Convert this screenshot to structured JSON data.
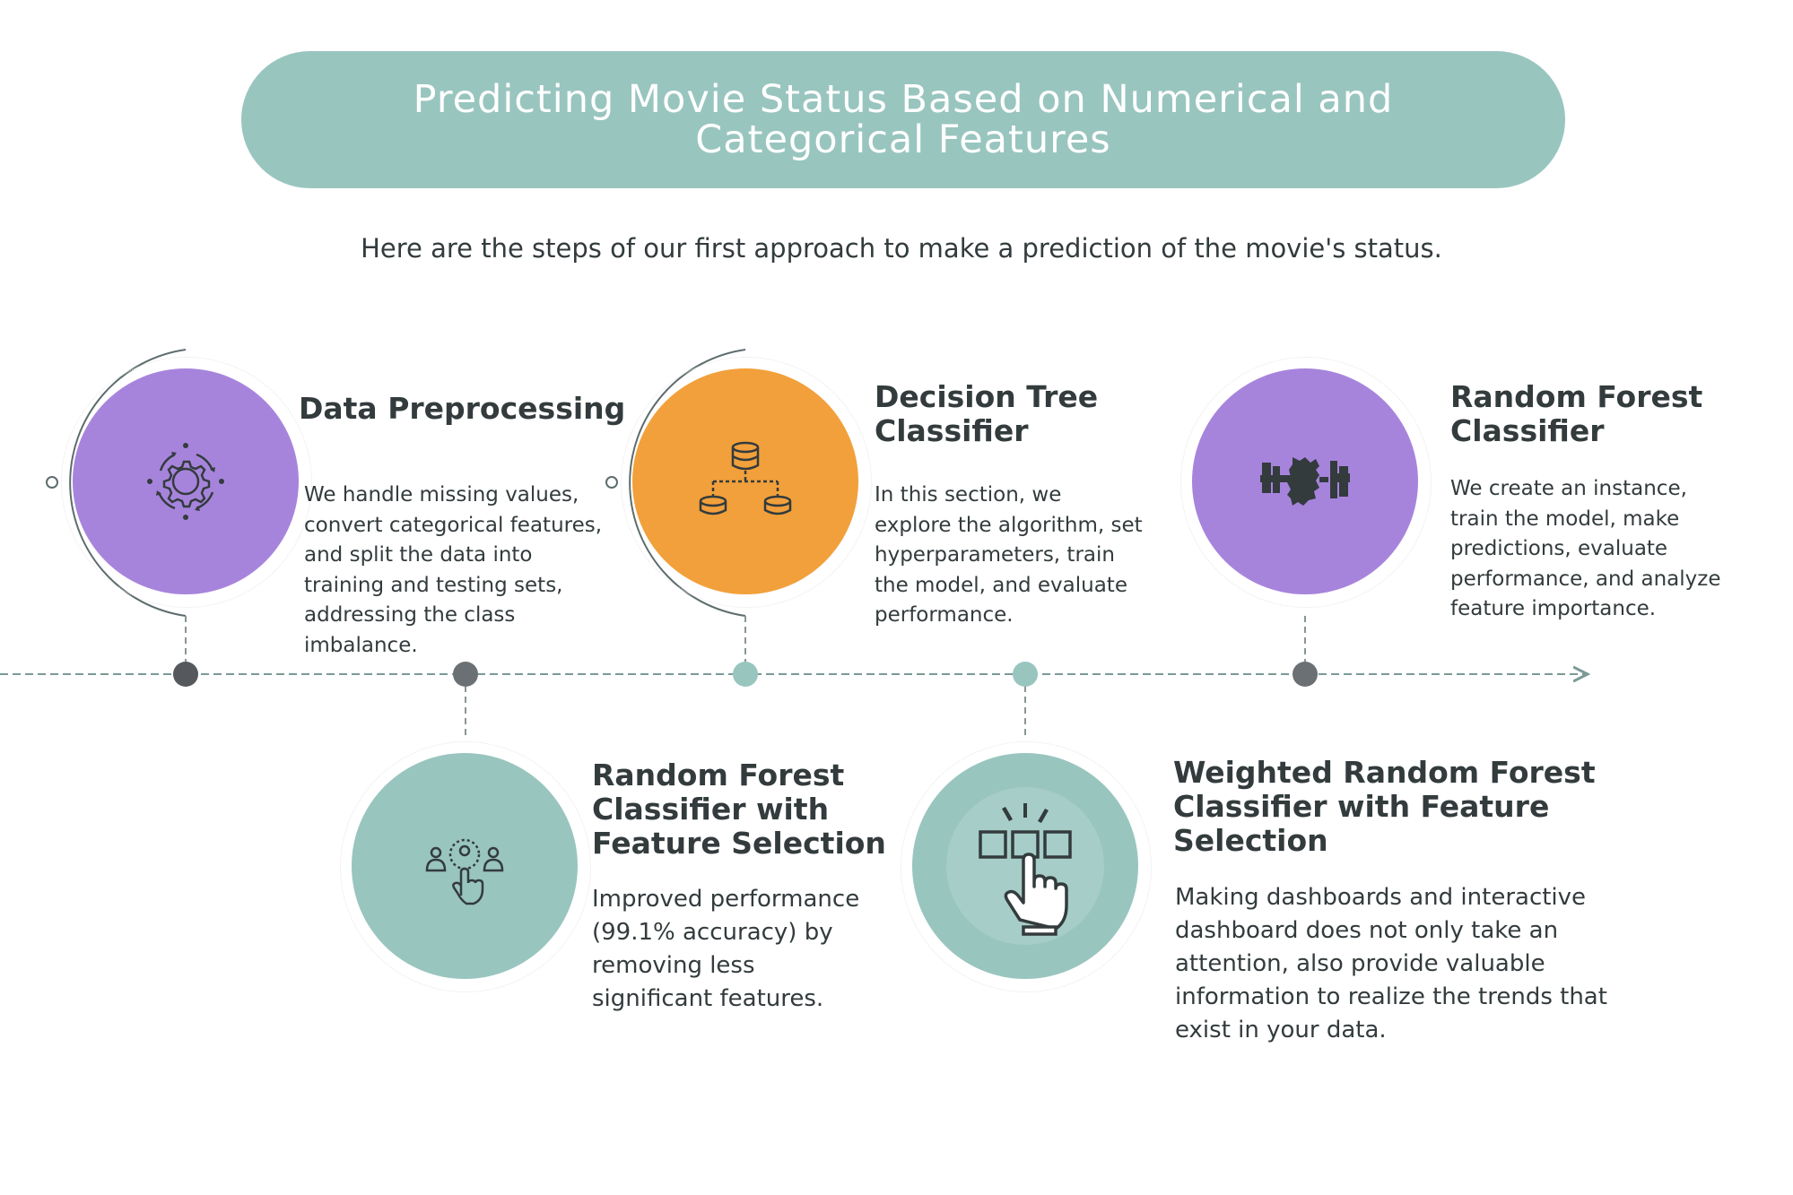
{
  "header": {
    "title": "Predicting Movie Status Based on Numerical and Categorical Features",
    "subtitle": "Here are the steps of our first approach to make a prediction of the movie's status."
  },
  "steps": [
    {
      "title": "Data Preprocessing",
      "description": "We handle missing values, convert categorical features, and split the data into training and testing sets, addressing the class imbalance.",
      "icon": "gear-cycle-icon",
      "color": "#a784dc"
    },
    {
      "title": "Random Forest Classifier with Feature Selection",
      "description": "Improved performance (99.1% accuracy) by removing less significant features.",
      "icon": "user-select-icon",
      "color": "#99c5bf"
    },
    {
      "title": "Decision Tree Classifier",
      "description": "In this section, we explore the algorithm, set hyperparameters, train the model, and evaluate performance.",
      "icon": "database-tree-icon",
      "color": "#f2a03b"
    },
    {
      "title": "Weighted Random Forest Classifier with Feature Selection",
      "description": "Making dashboards and interactive dashboard does not only take an attention, also provide valuable information to realize the trends that exist in your data.",
      "icon": "click-boxes-icon",
      "color": "#99c5bf"
    },
    {
      "title": "Random Forest Classifier",
      "description": "We create an instance, train the model, make predictions, evaluate performance, and analyze feature importance.",
      "icon": "forest-icon",
      "color": "#a784dc"
    }
  ],
  "colors": {
    "banner": "#99c5bf",
    "purple": "#a784dc",
    "orange": "#f2a03b",
    "teal": "#99c5bf",
    "dark_node": "#5b6064",
    "text": "#333b3d"
  }
}
